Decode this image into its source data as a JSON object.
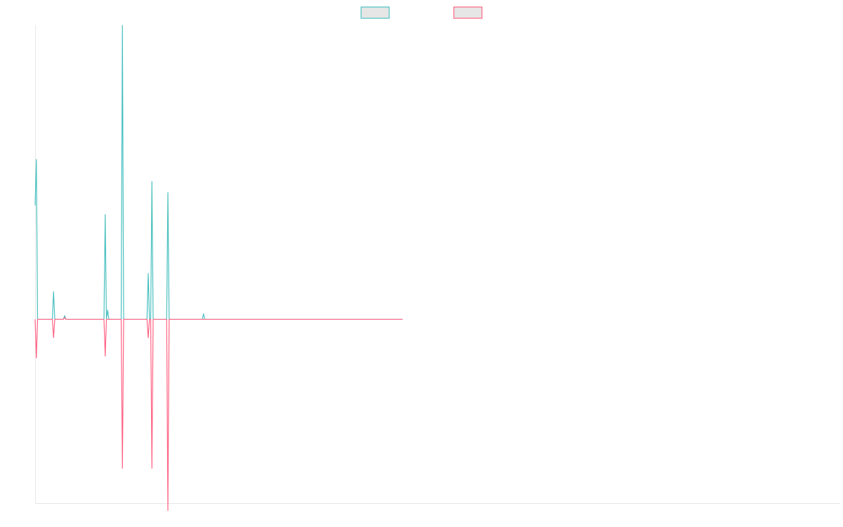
{
  "chart_data": {
    "type": "line",
    "title": "",
    "xlabel": "",
    "ylabel": "",
    "legend_position": "top-center",
    "grid": false,
    "x_count": 300,
    "ylim": [
      -100,
      160
    ],
    "series": [
      {
        "color": "#4bc0c0",
        "swatch_fill": "#e6e6e6",
        "values_sparse": [
          [
            0,
            62
          ],
          [
            1,
            87
          ],
          [
            2,
            0
          ],
          [
            14,
            0
          ],
          [
            15,
            15
          ],
          [
            16,
            0
          ],
          [
            23,
            0
          ],
          [
            24,
            2
          ],
          [
            25,
            0
          ],
          [
            56,
            0
          ],
          [
            57,
            57
          ],
          [
            58,
            0
          ],
          [
            59,
            5
          ],
          [
            60,
            0
          ],
          [
            70,
            0
          ],
          [
            71,
            160
          ],
          [
            72,
            0
          ],
          [
            91,
            0
          ],
          [
            92,
            25
          ],
          [
            93,
            0
          ],
          [
            94,
            0
          ],
          [
            95,
            75
          ],
          [
            96,
            0
          ],
          [
            107,
            0
          ],
          [
            108,
            69
          ],
          [
            109,
            0
          ],
          [
            136,
            0
          ],
          [
            137,
            3
          ],
          [
            138,
            0
          ]
        ]
      },
      {
        "color": "#ff6384",
        "swatch_fill": "#e6e6e6",
        "values_sparse": [
          [
            0,
            0
          ],
          [
            1,
            -21
          ],
          [
            2,
            0
          ],
          [
            14,
            0
          ],
          [
            15,
            -10
          ],
          [
            16,
            0
          ],
          [
            23,
            0
          ],
          [
            24,
            1
          ],
          [
            25,
            0
          ],
          [
            56,
            0
          ],
          [
            57,
            -20
          ],
          [
            58,
            0
          ],
          [
            70,
            0
          ],
          [
            71,
            -81
          ],
          [
            72,
            0
          ],
          [
            91,
            0
          ],
          [
            92,
            -10
          ],
          [
            93,
            0
          ],
          [
            94,
            0
          ],
          [
            95,
            -81
          ],
          [
            96,
            0
          ],
          [
            107,
            0
          ],
          [
            108,
            -104
          ],
          [
            109,
            0
          ]
        ]
      }
    ]
  }
}
